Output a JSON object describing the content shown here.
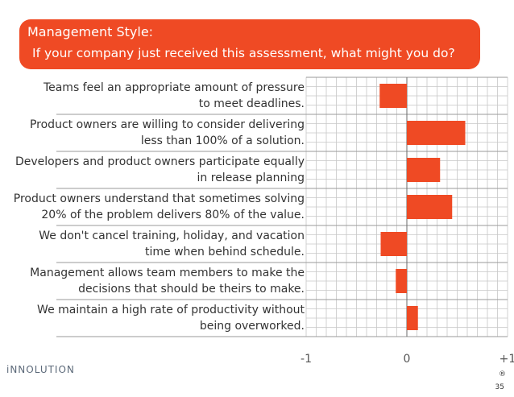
{
  "banner": {
    "title": "Management Style:",
    "question": "If your company just received this assessment, what might you do?"
  },
  "chart_data": {
    "type": "bar",
    "orientation": "horizontal",
    "categories": [
      [
        "Teams feel an appropriate amount of pressure",
        "to meet deadlines."
      ],
      [
        "Product owners are willing to consider delivering",
        "less than 100% of a solution."
      ],
      [
        "Developers and product owners participate equally",
        "in  release planning"
      ],
      [
        "Product owners understand that sometimes solving",
        "20% of the problem delivers 80% of the value."
      ],
      [
        "We don't cancel training, holiday, and vacation",
        "time when behind schedule."
      ],
      [
        "Management allows team members to make the",
        "decisions that should be theirs to make."
      ],
      [
        "We maintain a high rate of productivity without",
        "being overworked."
      ]
    ],
    "values": [
      -0.27,
      0.58,
      0.33,
      0.45,
      -0.26,
      -0.11,
      0.11
    ],
    "xlim": [
      -1,
      1
    ],
    "xticks": [
      "-1",
      "0",
      "+1"
    ],
    "grid": true,
    "bar_color": "#ef4a24"
  },
  "footer": {
    "brand": "iNNOLUTION",
    "reg_mark": "®",
    "page_number": "35"
  },
  "colors": {
    "accent": "#ef4a24",
    "grid": "#c7c7c7"
  }
}
